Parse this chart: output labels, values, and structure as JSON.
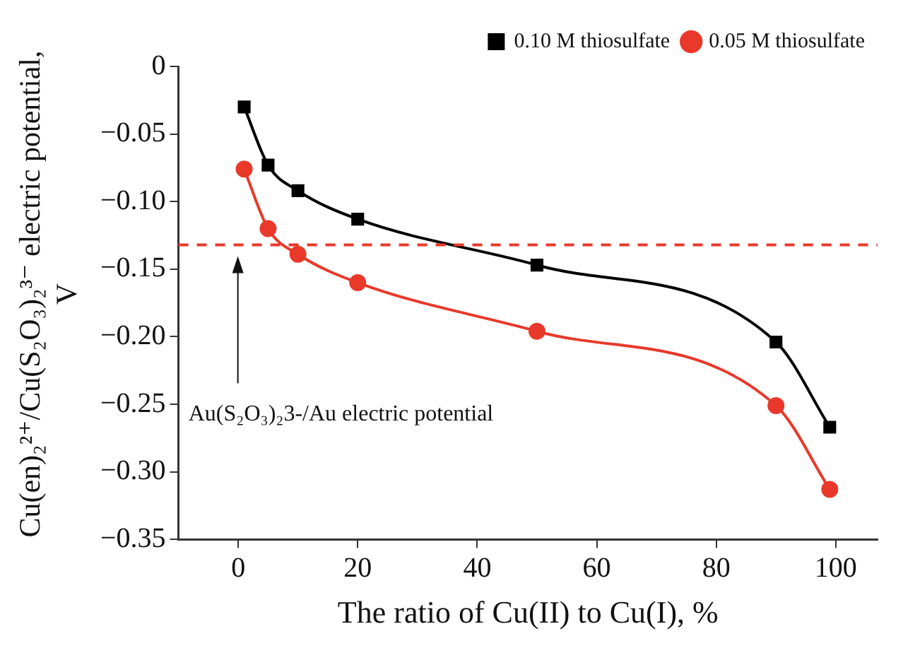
{
  "chart_data": {
    "type": "line",
    "xlabel": "The ratio of Cu(II) to Cu(I), %",
    "ylabel": "Cu(en)₂²⁺/Cu(S₂O₃)₂³⁻ electric potential, V",
    "x": [
      1,
      5,
      10,
      20,
      50,
      90,
      99
    ],
    "series": [
      {
        "name": "0.10 M thiosulfate",
        "color": "#000000",
        "marker": "square",
        "values": [
          -0.03,
          -0.073,
          -0.092,
          -0.113,
          -0.147,
          -0.204,
          -0.267
        ]
      },
      {
        "name": "0.05 M thiosulfate",
        "color": "#e8392b",
        "marker": "circle",
        "values": [
          -0.076,
          -0.12,
          -0.139,
          -0.16,
          -0.196,
          -0.251,
          -0.313
        ]
      }
    ],
    "xlim": [
      -10,
      107
    ],
    "xticks": [
      0,
      20,
      40,
      60,
      80,
      100
    ],
    "ylim": [
      -0.35,
      0
    ],
    "yticks": [
      {
        "value": 0,
        "label": "0"
      },
      {
        "value": -0.05,
        "label": "−0.05"
      },
      {
        "value": -0.1,
        "label": "−0.10"
      },
      {
        "value": -0.15,
        "label": "−0.15"
      },
      {
        "value": -0.2,
        "label": "−0.20"
      },
      {
        "value": -0.25,
        "label": "−0.25"
      },
      {
        "value": -0.3,
        "label": "−0.30"
      },
      {
        "value": -0.35,
        "label": "−0.35"
      }
    ],
    "ref_lines": [
      {
        "axis": "y",
        "value": -0.132,
        "color": "#e8392b",
        "line_style": "dashed"
      }
    ],
    "annotations": [
      "Au(S₂O₃)₂3-/Au electric potential"
    ],
    "legend": "top right",
    "grid": false
  }
}
